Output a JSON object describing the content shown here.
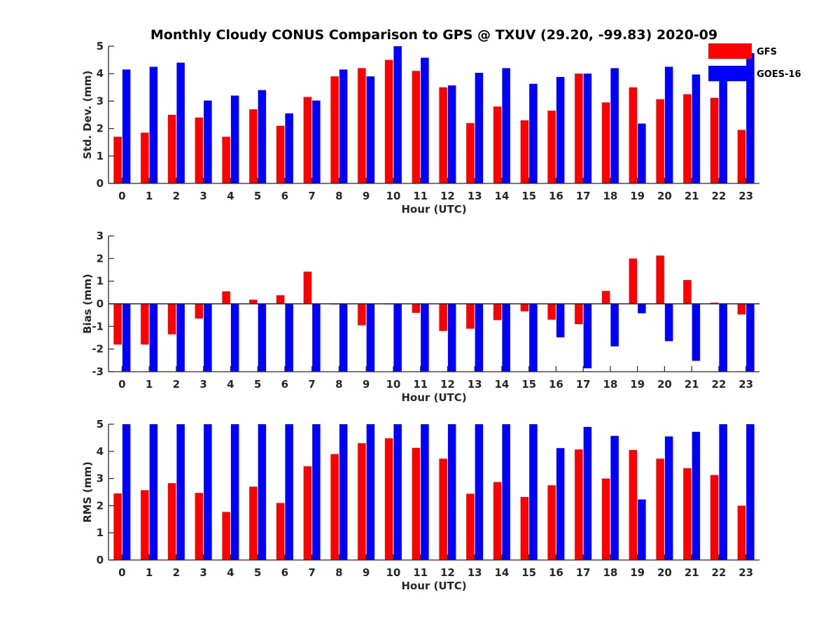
{
  "figure_title": "Monthly Cloudy CONUS Comparison to GPS @ TXUV (29.20, -99.83) 2020-09",
  "colors": {
    "GFS": "#ff0000",
    "GOES-16": "#0000ff",
    "axis": "#262626"
  },
  "legend": [
    "GFS",
    "GOES-16"
  ],
  "chart_data": [
    {
      "type": "bar",
      "xlabel": "Hour (UTC)",
      "ylabel": "Std. Dev. (mm)",
      "ylim": [
        0,
        5
      ],
      "yticks": [
        0,
        1,
        2,
        3,
        4,
        5
      ],
      "categories": [
        "0",
        "1",
        "2",
        "3",
        "4",
        "5",
        "6",
        "7",
        "8",
        "9",
        "10",
        "11",
        "12",
        "13",
        "14",
        "15",
        "16",
        "17",
        "18",
        "19",
        "20",
        "21",
        "22",
        "23"
      ],
      "legend_position": "top-right",
      "series": [
        {
          "name": "GFS",
          "values": [
            1.7,
            1.85,
            2.5,
            2.4,
            1.7,
            2.7,
            2.1,
            3.15,
            3.9,
            4.2,
            4.5,
            4.1,
            3.5,
            2.2,
            2.8,
            2.3,
            2.65,
            4.0,
            2.95,
            3.5,
            3.07,
            3.25,
            3.12,
            1.95
          ]
        },
        {
          "name": "GOES-16",
          "values": [
            4.15,
            4.25,
            4.4,
            3.02,
            3.2,
            3.4,
            2.55,
            3.02,
            4.15,
            3.9,
            5.0,
            4.58,
            3.57,
            4.03,
            4.2,
            3.63,
            3.88,
            4.0,
            4.2,
            2.18,
            4.25,
            3.97,
            4.1,
            4.75
          ]
        }
      ]
    },
    {
      "type": "bar",
      "xlabel": "Hour (UTC)",
      "ylabel": "Bias (mm)",
      "ylim": [
        -3,
        3
      ],
      "yticks": [
        -3,
        -2,
        -1,
        0,
        1,
        2,
        3
      ],
      "categories": [
        "0",
        "1",
        "2",
        "3",
        "4",
        "5",
        "6",
        "7",
        "8",
        "9",
        "10",
        "11",
        "12",
        "13",
        "14",
        "15",
        "16",
        "17",
        "18",
        "19",
        "20",
        "21",
        "22",
        "23"
      ],
      "series": [
        {
          "name": "GFS",
          "values": [
            -1.8,
            -1.8,
            -1.35,
            -0.65,
            0.55,
            0.18,
            0.38,
            1.42,
            -0.03,
            -0.95,
            0.0,
            -0.4,
            -1.2,
            -1.1,
            -0.72,
            -0.33,
            -0.7,
            -0.9,
            0.57,
            2.0,
            2.13,
            1.05,
            0.05,
            -0.47
          ]
        },
        {
          "name": "GOES-16",
          "values": [
            -3.0,
            -3.0,
            -3.0,
            -3.0,
            -3.0,
            -3.0,
            -3.0,
            -3.0,
            -3.0,
            -3.0,
            -3.0,
            -3.0,
            -3.0,
            -3.0,
            -3.0,
            -3.0,
            -1.48,
            -2.85,
            -1.88,
            -0.42,
            -1.65,
            -2.52,
            -3.0,
            -3.0
          ]
        }
      ]
    },
    {
      "type": "bar",
      "xlabel": "Hour (UTC)",
      "ylabel": "RMS (mm)",
      "ylim": [
        0,
        5
      ],
      "yticks": [
        0,
        1,
        2,
        3,
        4,
        5
      ],
      "categories": [
        "0",
        "1",
        "2",
        "3",
        "4",
        "5",
        "6",
        "7",
        "8",
        "9",
        "10",
        "11",
        "12",
        "13",
        "14",
        "15",
        "16",
        "17",
        "18",
        "19",
        "20",
        "21",
        "22",
        "23"
      ],
      "series": [
        {
          "name": "GFS",
          "values": [
            2.45,
            2.57,
            2.83,
            2.47,
            1.77,
            2.7,
            2.1,
            3.45,
            3.9,
            4.3,
            4.48,
            4.13,
            3.73,
            2.44,
            2.87,
            2.32,
            2.75,
            4.07,
            3.0,
            4.05,
            3.73,
            3.38,
            3.13,
            2.0
          ]
        },
        {
          "name": "GOES-16",
          "values": [
            5.0,
            5.0,
            5.0,
            5.0,
            5.0,
            5.0,
            5.0,
            5.0,
            5.0,
            5.0,
            5.0,
            5.0,
            5.0,
            5.0,
            5.0,
            5.0,
            4.12,
            4.9,
            4.57,
            2.23,
            4.55,
            4.72,
            5.0,
            5.0
          ]
        }
      ]
    }
  ]
}
